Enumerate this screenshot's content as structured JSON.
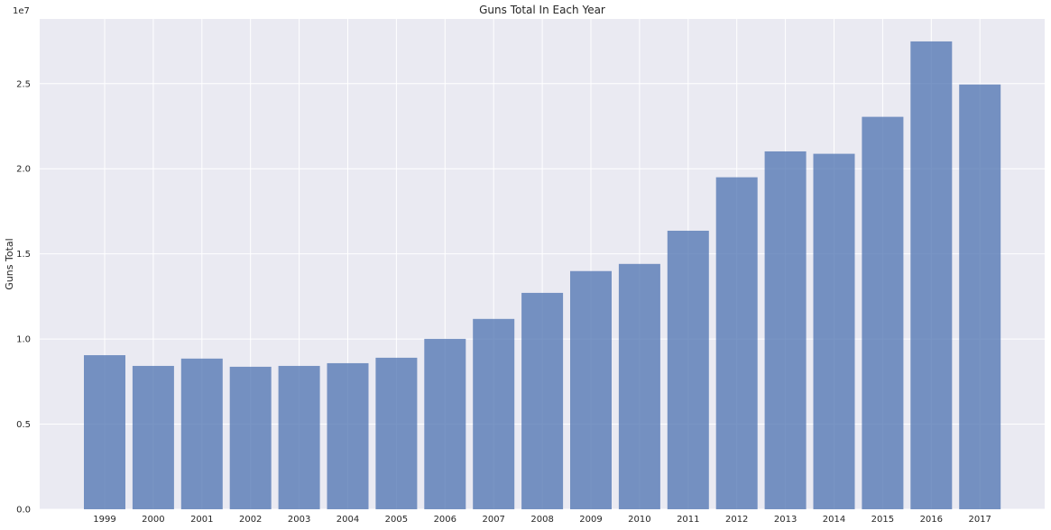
{
  "chart_data": {
    "type": "bar",
    "title": "Guns Total In Each Year",
    "xlabel": "",
    "ylabel": "Guns Total",
    "offset_label": "1e7",
    "categories": [
      "1999",
      "2000",
      "2001",
      "2002",
      "2003",
      "2004",
      "2005",
      "2006",
      "2007",
      "2008",
      "2009",
      "2010",
      "2011",
      "2012",
      "2013",
      "2014",
      "2015",
      "2016",
      "2017"
    ],
    "values": [
      9050000,
      8420000,
      8850000,
      8370000,
      8420000,
      8580000,
      8900000,
      10010000,
      11180000,
      12710000,
      13990000,
      14410000,
      16360000,
      19500000,
      21020000,
      20880000,
      23050000,
      27480000,
      24950000
    ],
    "ylim": [
      0,
      28800000
    ],
    "yticks": [
      0,
      5000000,
      10000000,
      15000000,
      20000000,
      25000000
    ],
    "ytick_labels": [
      "0.0",
      "0.5",
      "1.0",
      "1.5",
      "2.0",
      "2.5"
    ],
    "bar_color": "#4c72b0",
    "bar_alpha": 0.75,
    "background": "#eaeaf2",
    "gridlines": true,
    "legend": "none"
  }
}
